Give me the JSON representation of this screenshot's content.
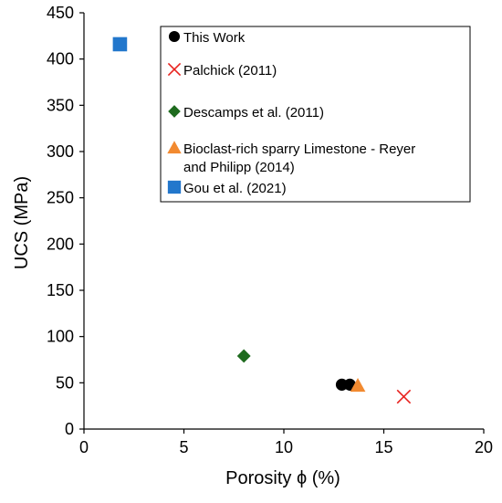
{
  "chart_data": {
    "type": "scatter",
    "xlabel": "Porosity ϕ (%)",
    "ylabel": "UCS (MPa)",
    "xlim": [
      0,
      20
    ],
    "ylim": [
      0,
      450
    ],
    "x_ticks": [
      0,
      5,
      10,
      15,
      20
    ],
    "y_ticks": [
      0,
      50,
      100,
      150,
      200,
      250,
      300,
      350,
      400,
      450
    ],
    "grid": false,
    "legend_position": "top-right",
    "series": [
      {
        "name": "This Work",
        "marker": "circle",
        "color": "#000000",
        "points": [
          {
            "x": 12.9,
            "y": 48
          },
          {
            "x": 13.3,
            "y": 48
          }
        ]
      },
      {
        "name": "Palchick (2011)",
        "marker": "x",
        "color": "#e8231f",
        "points": [
          {
            "x": 16.0,
            "y": 35
          }
        ]
      },
      {
        "name": "Descamps et al. (2011)",
        "marker": "diamond",
        "color": "#1e6b1e",
        "points": [
          {
            "x": 8.0,
            "y": 79
          }
        ]
      },
      {
        "name": "Bioclast-rich sparry Limestone - Reyer and Philipp (2014)",
        "legend_lines": [
          "Bioclast-rich sparry Limestone - Reyer",
          "and Philipp (2014)"
        ],
        "marker": "triangle",
        "color": "#f28a30",
        "points": [
          {
            "x": 13.7,
            "y": 47
          }
        ]
      },
      {
        "name": "Gou et al. (2021)",
        "marker": "square",
        "color": "#2277cc",
        "points": [
          {
            "x": 1.8,
            "y": 416
          }
        ]
      }
    ]
  }
}
